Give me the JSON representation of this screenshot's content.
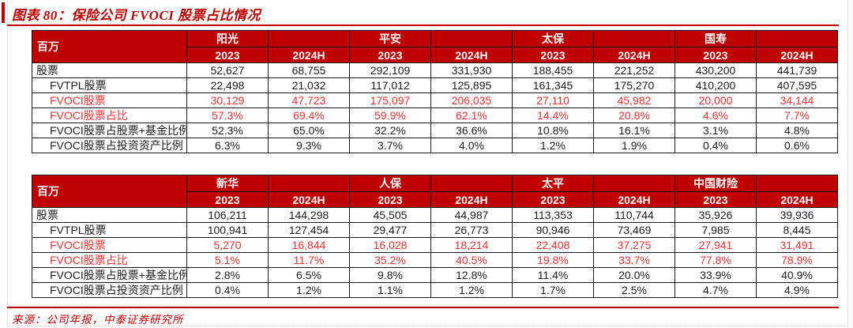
{
  "title": "图表 80：保险公司 FVOCI 股票占比情况",
  "source": "来源：公司年报，中泰证券研究所",
  "unit_label": "百万",
  "year_labels": [
    "2023",
    "2024H"
  ],
  "colors": {
    "header_bg": "#c00000",
    "accent_red": "#c00000",
    "highlight_red": "#f33030",
    "grid_line": "#161616",
    "dotted_border": "#e7c7c7"
  },
  "tables": [
    {
      "name": "insurers-group-1",
      "companies": [
        "阳光",
        "平安",
        "太保",
        "国寿"
      ],
      "rows": [
        {
          "label": "股票",
          "indent": false,
          "highlight": false,
          "values": [
            "52,627",
            "68,755",
            "292,109",
            "331,930",
            "188,455",
            "221,252",
            "430,200",
            "441,739"
          ]
        },
        {
          "label": "FVTPL股票",
          "indent": true,
          "highlight": false,
          "values": [
            "22,498",
            "21,032",
            "117,012",
            "125,895",
            "161,345",
            "175,270",
            "410,200",
            "407,595"
          ]
        },
        {
          "label": "FVOCI股票",
          "indent": true,
          "highlight": true,
          "values": [
            "30,129",
            "47,723",
            "175,097",
            "206,035",
            "27,110",
            "45,982",
            "20,000",
            "34,144"
          ]
        },
        {
          "label": "FVOCI股票占比",
          "indent": true,
          "highlight": true,
          "values": [
            "57.3%",
            "69.4%",
            "59.9%",
            "62.1%",
            "14.4%",
            "20.8%",
            "4.6%",
            "7.7%"
          ]
        },
        {
          "label": "FVOCI股票占股票+基金比例",
          "indent": true,
          "highlight": false,
          "values": [
            "52.3%",
            "65.0%",
            "32.2%",
            "36.6%",
            "10.8%",
            "16.1%",
            "3.1%",
            "4.8%"
          ]
        },
        {
          "label": "FVOCI股票占投资资产比例",
          "indent": true,
          "highlight": false,
          "values": [
            "6.3%",
            "9.3%",
            "3.7%",
            "4.0%",
            "1.2%",
            "1.9%",
            "0.4%",
            "0.6%"
          ]
        }
      ]
    },
    {
      "name": "insurers-group-2",
      "companies": [
        "新华",
        "人保",
        "太平",
        "中国财险"
      ],
      "rows": [
        {
          "label": "股票",
          "indent": false,
          "highlight": false,
          "values": [
            "106,211",
            "144,298",
            "45,505",
            "44,987",
            "113,353",
            "110,744",
            "35,926",
            "39,936"
          ]
        },
        {
          "label": "FVTPL股票",
          "indent": true,
          "highlight": false,
          "values": [
            "100,941",
            "127,454",
            "29,477",
            "26,773",
            "90,946",
            "73,469",
            "7,985",
            "8,445"
          ]
        },
        {
          "label": "FVOCI股票",
          "indent": true,
          "highlight": true,
          "values": [
            "5,270",
            "16,844",
            "16,028",
            "18,214",
            "22,408",
            "37,275",
            "27,941",
            "31,491"
          ]
        },
        {
          "label": "FVOCI股票占比",
          "indent": true,
          "highlight": true,
          "values": [
            "5.1%",
            "11.7%",
            "35.2%",
            "40.5%",
            "19.8%",
            "33.7%",
            "77.8%",
            "78.9%"
          ]
        },
        {
          "label": "FVOCI股票占股票+基金比例",
          "indent": true,
          "highlight": false,
          "values": [
            "2.8%",
            "6.5%",
            "9.8%",
            "12.8%",
            "11.4%",
            "20.0%",
            "33.9%",
            "40.9%"
          ]
        },
        {
          "label": "FVOCI股票占投资资产比例",
          "indent": true,
          "highlight": false,
          "values": [
            "0.4%",
            "1.2%",
            "1.1%",
            "1.2%",
            "1.7%",
            "2.5%",
            "4.7%",
            "4.9%"
          ]
        }
      ]
    }
  ]
}
